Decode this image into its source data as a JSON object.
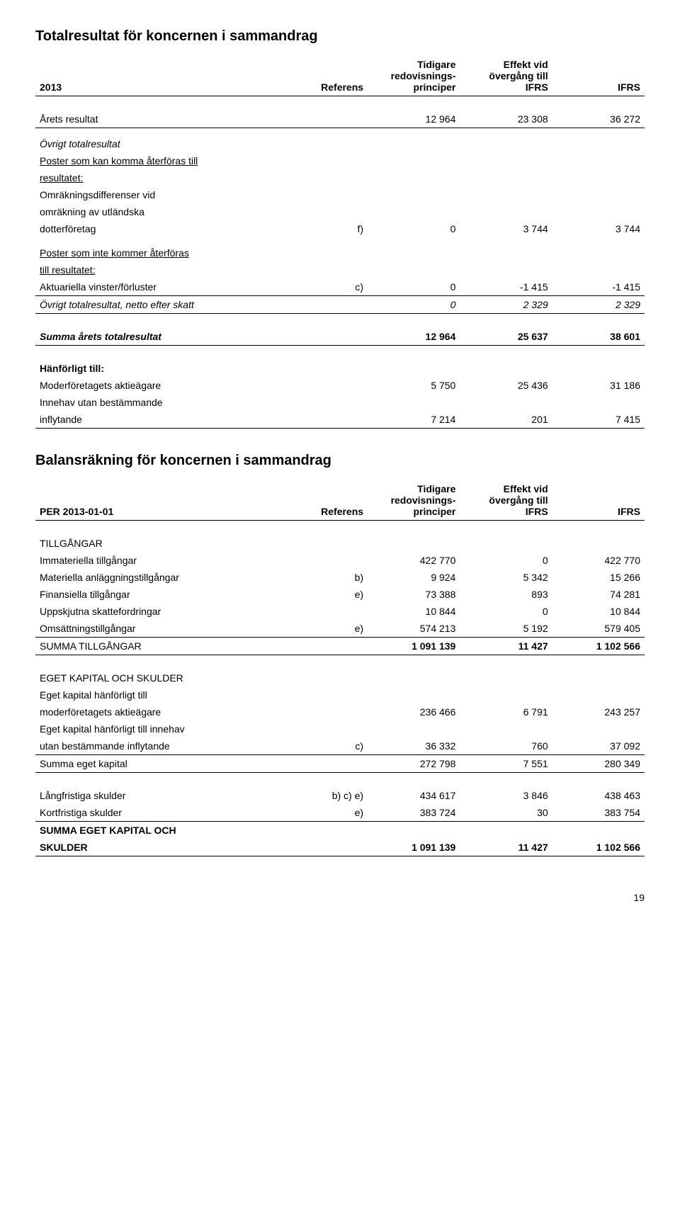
{
  "table1": {
    "heading": "Totalresultat för koncernen i sammandrag",
    "header": {
      "c1": "2013",
      "c2": "Referens",
      "c3a": "Tidigare",
      "c3b": "redovisnings-",
      "c3c": "principer",
      "c4a": "Effekt vid",
      "c4b": "övergång till",
      "c4c": "IFRS",
      "c5": "IFRS"
    },
    "r_year": {
      "label": "Årets resultat",
      "v1": "12 964",
      "v2": "23 308",
      "v3": "36 272"
    },
    "r_otr_head": "Övrigt totalresultat",
    "r_poster_kan1": "Poster som kan komma återföras till",
    "r_poster_kan2": "resultatet:",
    "r_omrak1": "Omräkningsdifferenser vid",
    "r_omrak2": "omräkning av utländska",
    "r_omrak3": {
      "label": "dotterföretag",
      "ref": "f)",
      "v1": "0",
      "v2": "3 744",
      "v3": "3 744"
    },
    "r_poster_inte1": "Poster som inte kommer återföras",
    "r_poster_inte2": "till resultatet:",
    "r_akt": {
      "label": "Aktuariella vinster/förluster",
      "ref": "c)",
      "v1": "0",
      "v2": "-1 415",
      "v3": "-1 415"
    },
    "r_otr_netto": {
      "label": "Övrigt totalresultat, netto efter skatt",
      "v1": "0",
      "v2": "2 329",
      "v3": "2 329"
    },
    "r_summa": {
      "label": "Summa årets totalresultat",
      "v1": "12 964",
      "v2": "25 637",
      "v3": "38 601"
    },
    "r_hanf": "Hänförligt till:",
    "r_moder": {
      "label": "Moderföretagets aktieägare",
      "v1": "5 750",
      "v2": "25 436",
      "v3": "31 186"
    },
    "r_innehav1": "Innehav utan bestämmande",
    "r_innehav2": {
      "label": "inflytande",
      "v1": "7 214",
      "v2": "201",
      "v3": "7 415"
    }
  },
  "table2": {
    "heading": "Balansräkning för koncernen i sammandrag",
    "header": {
      "c1": "PER 2013-01-01",
      "c2": "Referens",
      "c3a": "Tidigare",
      "c3b": "redovisnings-",
      "c3c": "principer",
      "c4a": "Effekt vid",
      "c4b": "övergång till",
      "c4c": "IFRS",
      "c5": "IFRS"
    },
    "r_tillg_head": "TILLGÅNGAR",
    "r_imm": {
      "label": "Immateriella tillgångar",
      "v1": "422 770",
      "v2": "0",
      "v3": "422 770"
    },
    "r_mat": {
      "label": "Materiella anläggningstillgångar",
      "ref": "b)",
      "v1": "9 924",
      "v2": "5 342",
      "v3": "15 266"
    },
    "r_fin": {
      "label": "Finansiella tillgångar",
      "ref": "e)",
      "v1": "73 388",
      "v2": "893",
      "v3": "74 281"
    },
    "r_upp": {
      "label": "Uppskjutna skattefordringar",
      "v1": "10 844",
      "v2": "0",
      "v3": "10 844"
    },
    "r_oms": {
      "label": "Omsättningstillgångar",
      "ref": "e)",
      "v1": "574 213",
      "v2": "5 192",
      "v3": "579 405"
    },
    "r_sumtill": {
      "label": "SUMMA TILLGÅNGAR",
      "v1": "1 091 139",
      "v2": "11 427",
      "v3": "1 102 566"
    },
    "r_eks_head": "EGET KAPITAL OCH SKULDER",
    "r_ek_hanf1": "Eget kapital hänförligt till",
    "r_ek_hanf2": {
      "label": "moderföretagets aktieägare",
      "v1": "236 466",
      "v2": "6 791",
      "v3": "243 257"
    },
    "r_ek_inn1": "Eget kapital hänförligt till innehav",
    "r_ek_inn2": {
      "label": "utan bestämmande inflytande",
      "ref": "c)",
      "v1": "36 332",
      "v2": "760",
      "v3": "37 092"
    },
    "r_sumek": {
      "label": "Summa eget kapital",
      "v1": "272 798",
      "v2": "7 551",
      "v3": "280 349"
    },
    "r_lang": {
      "label": "Långfristiga skulder",
      "ref": "b) c) e)",
      "v1": "434 617",
      "v2": "3 846",
      "v3": "438 463"
    },
    "r_kort": {
      "label": "Kortfristiga skulder",
      "ref": "e)",
      "v1": "383 724",
      "v2": "30",
      "v3": "383 754"
    },
    "r_sumeks1": "SUMMA EGET KAPITAL OCH",
    "r_sumeks2": {
      "label": "SKULDER",
      "v1": "1 091 139",
      "v2": "11 427",
      "v3": "1 102 566"
    }
  },
  "page_number": "19"
}
